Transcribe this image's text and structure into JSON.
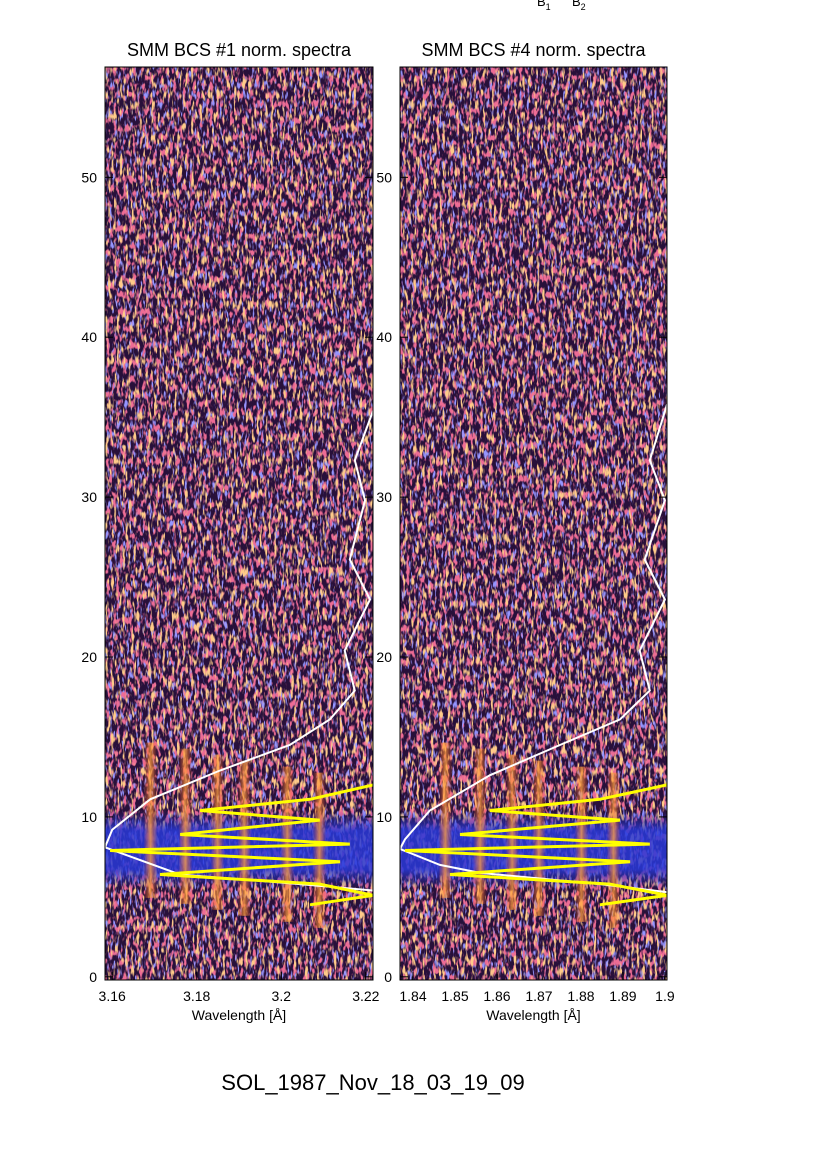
{
  "header_labels": [
    {
      "base": "B",
      "sub": "1"
    },
    {
      "base": "B",
      "sub": "2"
    }
  ],
  "footer": "SOL_1987_Nov_18_03_19_09",
  "chart_data": [
    {
      "type": "heatmap",
      "title": "SMM BCS #1 norm. spectra",
      "x_label": "Wavelength [Å]",
      "xlim": [
        3.1583,
        3.2217
      ],
      "xticks": [
        3.16,
        3.18,
        3.2,
        3.22
      ],
      "ylim": [
        -0.2,
        56.9
      ],
      "yticks": [
        0,
        10,
        20,
        30,
        40,
        50
      ],
      "series": [
        {
          "color": "#ffffff",
          "x": [
            3.2217,
            3.2174,
            3.2198,
            3.2162,
            3.221,
            3.215,
            3.2174,
            3.2115,
            3.202,
            3.1855,
            3.169,
            3.16,
            3.1583,
            3.1666,
            3.176,
            3.2044,
            3.2217
          ],
          "y": [
            35.4,
            32.3,
            29.8,
            26.1,
            23.6,
            20.4,
            17.9,
            16.1,
            14.5,
            12.9,
            11.1,
            9.2,
            8.1,
            7.3,
            6.4,
            5.8,
            5.4
          ]
        },
        {
          "color": "#ffff00",
          "x": [
            3.2217,
            3.2068,
            3.1808,
            3.2091,
            3.1761,
            3.2162,
            3.1595,
            3.2139,
            3.1713,
            3.2091,
            3.2217,
            3.2068
          ],
          "y": [
            12.0,
            11.1,
            10.4,
            9.8,
            8.9,
            8.3,
            7.9,
            7.2,
            6.4,
            5.8,
            5.1,
            4.5
          ]
        }
      ]
    },
    {
      "type": "heatmap",
      "title": "SMM BCS #4 norm. spectra",
      "x_label": "Wavelength [Å]",
      "xlim": [
        1.8369,
        1.9005
      ],
      "xticks": [
        1.84,
        1.85,
        1.86,
        1.87,
        1.88,
        1.89,
        1.9
      ],
      "ylim": [
        -0.2,
        56.9
      ],
      "yticks": [
        0,
        10,
        20,
        30,
        40,
        50
      ],
      "series": [
        {
          "color": "#ffffff",
          "x": [
            1.9005,
            1.8964,
            1.9,
            1.8952,
            1.9,
            1.894,
            1.8964,
            1.8893,
            1.875,
            1.8583,
            1.844,
            1.8381,
            1.8369,
            1.8464,
            1.856,
            1.8845,
            1.9005
          ],
          "y": [
            35.8,
            32.3,
            29.8,
            26.1,
            23.6,
            20.4,
            17.9,
            16.1,
            14.5,
            12.6,
            10.4,
            8.6,
            8.0,
            7.0,
            6.5,
            5.8,
            5.3
          ]
        },
        {
          "color": "#ffff00",
          "x": [
            1.9005,
            1.8845,
            1.8583,
            1.8893,
            1.8512,
            1.8964,
            1.8381,
            1.8917,
            1.8488,
            1.8869,
            1.9005,
            1.8845
          ],
          "y": [
            12.0,
            11.1,
            10.4,
            9.8,
            8.9,
            8.3,
            7.9,
            7.2,
            6.4,
            5.8,
            5.1,
            4.5
          ]
        }
      ]
    }
  ]
}
